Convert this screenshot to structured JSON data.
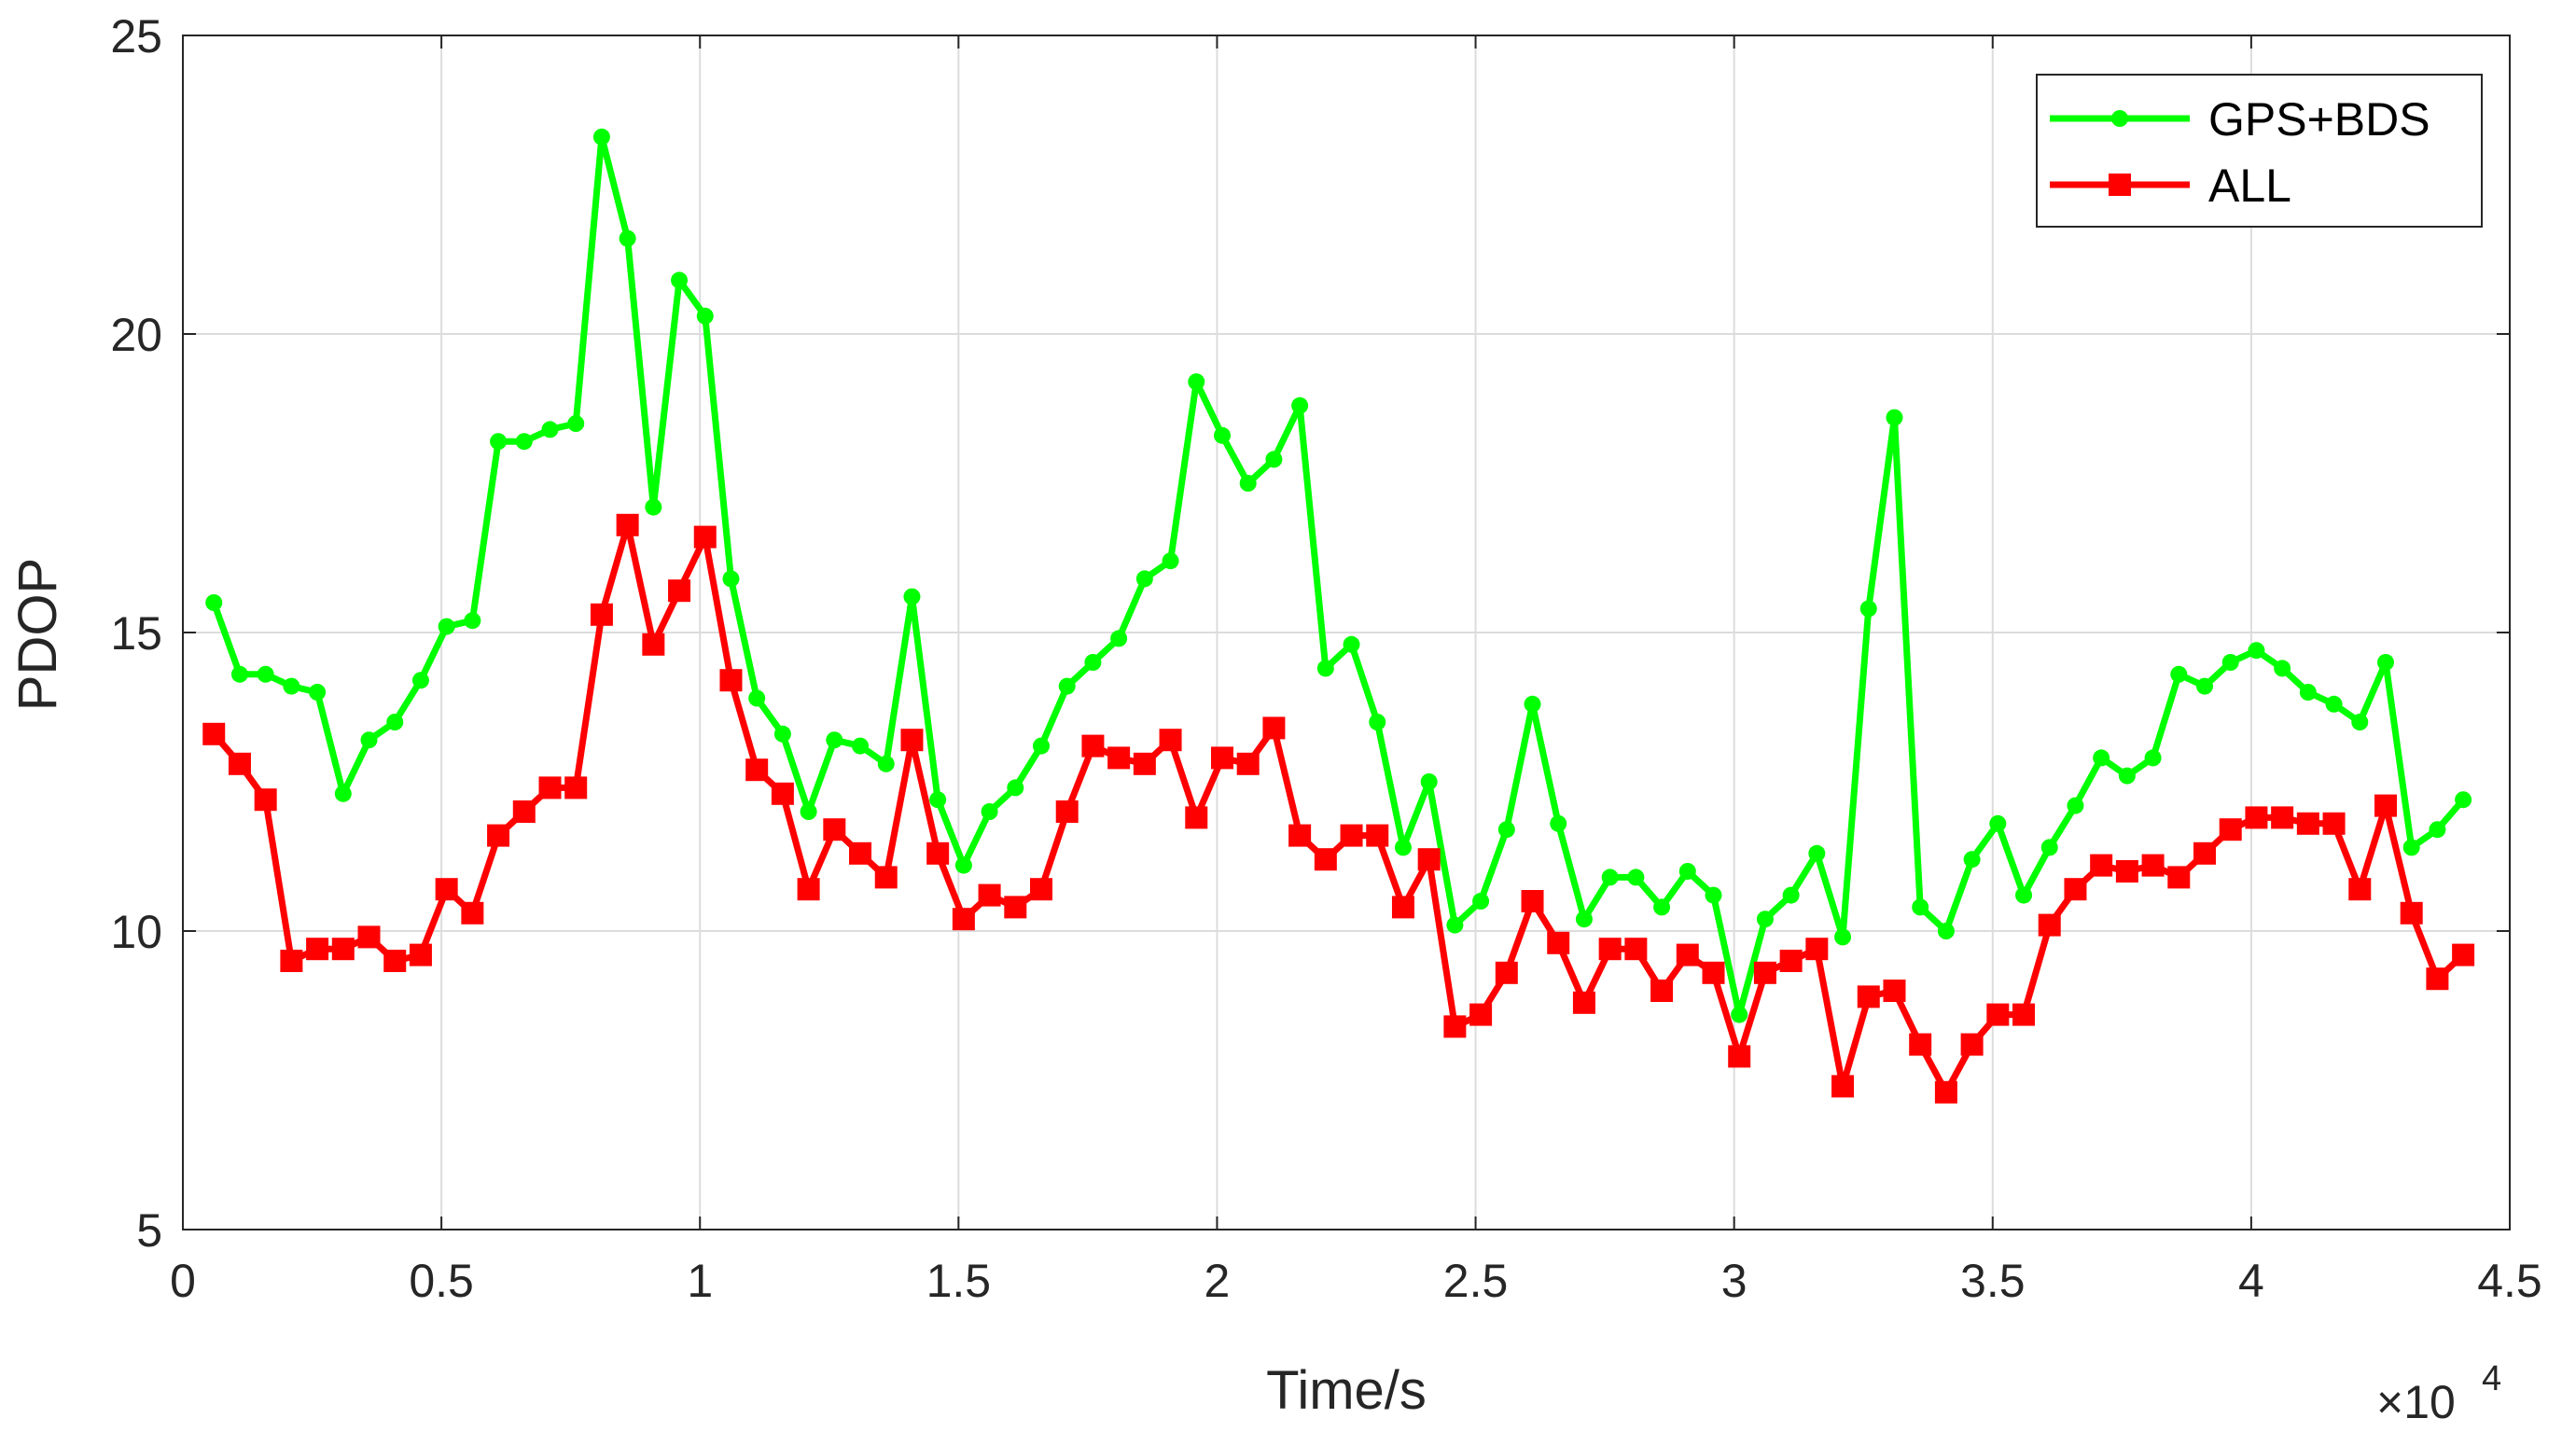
{
  "chart_data": {
    "type": "line",
    "xlabel": "Time/s",
    "ylabel": "PDOP",
    "x_exponent_label": "×10",
    "x_exponent_power": "4",
    "xlim": [
      0,
      4.5
    ],
    "ylim": [
      5,
      25
    ],
    "x_ticks": [
      "0",
      "0.5",
      "1",
      "1.5",
      "2",
      "2.5",
      "3",
      "3.5",
      "4",
      "4.5"
    ],
    "y_ticks": [
      "5",
      "10",
      "15",
      "20",
      "25"
    ],
    "grid": true,
    "legend_position": "top-right",
    "x": [
      0.06,
      0.11,
      0.16,
      0.21,
      0.26,
      0.31,
      0.36,
      0.41,
      0.46,
      0.51,
      0.56,
      0.61,
      0.66,
      0.71,
      0.76,
      0.81,
      0.86,
      0.91,
      0.96,
      1.01,
      1.06,
      1.11,
      1.16,
      1.21,
      1.26,
      1.31,
      1.36,
      1.41,
      1.46,
      1.51,
      1.56,
      1.61,
      1.66,
      1.71,
      1.76,
      1.81,
      1.86,
      1.91,
      1.96,
      2.01,
      2.06,
      2.11,
      2.16,
      2.21,
      2.26,
      2.31,
      2.36,
      2.41,
      2.46,
      2.51,
      2.56,
      2.61,
      2.66,
      2.71,
      2.76,
      2.81,
      2.86,
      2.91,
      2.96,
      3.01,
      3.06,
      3.11,
      3.16,
      3.21,
      3.26,
      3.31,
      3.36,
      3.41,
      3.46,
      3.51,
      3.56,
      3.61,
      3.66,
      3.71,
      3.76,
      3.81,
      3.86,
      3.91,
      3.96,
      4.01,
      4.06,
      4.11,
      4.16,
      4.21,
      4.26,
      4.31,
      4.36,
      4.41
    ],
    "series": [
      {
        "name": "GPS+BDS",
        "color": "#00ff00",
        "marker": "circle",
        "values": [
          15.5,
          14.3,
          14.3,
          14.1,
          14.0,
          12.3,
          13.2,
          13.5,
          14.2,
          15.1,
          15.2,
          18.2,
          18.2,
          18.4,
          18.5,
          23.3,
          21.6,
          17.1,
          20.9,
          20.3,
          15.9,
          13.9,
          13.3,
          12.0,
          13.2,
          13.1,
          12.8,
          15.6,
          12.2,
          11.1,
          12.0,
          12.4,
          13.1,
          14.1,
          14.5,
          14.9,
          15.9,
          16.2,
          19.2,
          18.3,
          17.5,
          17.9,
          18.8,
          14.4,
          14.8,
          13.5,
          11.4,
          12.5,
          10.1,
          10.5,
          11.7,
          13.8,
          11.8,
          10.2,
          10.9,
          10.9,
          10.4,
          11.0,
          10.6,
          8.6,
          10.2,
          10.6,
          11.3,
          9.9,
          15.4,
          18.6,
          10.4,
          10.0,
          11.2,
          11.8,
          10.6,
          11.4,
          12.1,
          12.9,
          12.6,
          12.9,
          14.3,
          14.1,
          14.5,
          14.7,
          14.4,
          14.0,
          13.8,
          13.5,
          14.5,
          11.4,
          11.7,
          12.2
        ]
      },
      {
        "name": "ALL",
        "color": "#ff0000",
        "marker": "square",
        "values": [
          13.3,
          12.8,
          12.2,
          9.5,
          9.7,
          9.7,
          9.9,
          9.5,
          9.6,
          10.7,
          10.3,
          11.6,
          12.0,
          12.4,
          12.4,
          15.3,
          16.8,
          14.8,
          15.7,
          16.6,
          14.2,
          12.7,
          12.3,
          10.7,
          11.7,
          11.3,
          10.9,
          13.2,
          11.3,
          10.2,
          10.6,
          10.4,
          10.7,
          12.0,
          13.1,
          12.9,
          12.8,
          13.2,
          11.9,
          12.9,
          12.8,
          13.4,
          11.6,
          11.2,
          11.6,
          11.6,
          10.4,
          11.2,
          8.4,
          8.6,
          9.3,
          10.5,
          9.8,
          8.8,
          9.7,
          9.7,
          9.0,
          9.6,
          9.3,
          7.9,
          9.3,
          9.5,
          9.7,
          7.4,
          8.9,
          9.0,
          8.1,
          7.3,
          8.1,
          8.6,
          8.6,
          10.1,
          10.7,
          11.1,
          11.0,
          11.1,
          10.9,
          11.3,
          11.7,
          11.9,
          11.9,
          11.8,
          11.8,
          10.7,
          12.1,
          10.3,
          9.2,
          9.6
        ]
      }
    ]
  }
}
